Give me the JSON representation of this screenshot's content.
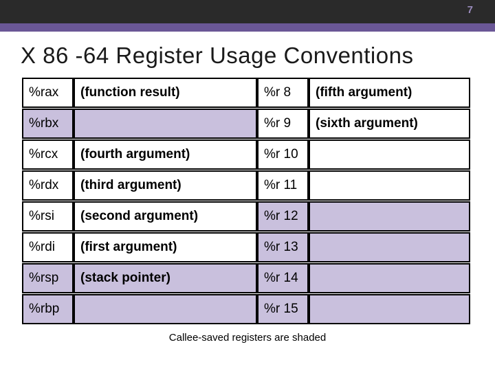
{
  "page_number": "7",
  "title": "X 86 -64 Register Usage Conventions",
  "caption": "Callee-saved registers are shaded",
  "colors": {
    "header_bg": "#2a2a2a",
    "stripe_bg": "#6a5796",
    "shaded_bg": "#c9c0dd",
    "page_num_color": "#9a8bbd"
  },
  "left_registers": [
    {
      "name": "%rax",
      "desc": "(function result)",
      "shaded": false
    },
    {
      "name": "%rbx",
      "desc": "",
      "shaded": true
    },
    {
      "name": "%rcx",
      "desc": "(fourth argument)",
      "shaded": false
    },
    {
      "name": "%rdx",
      "desc": "(third argument)",
      "shaded": false
    },
    {
      "name": "%rsi",
      "desc": "(second argument)",
      "shaded": false
    },
    {
      "name": "%rdi",
      "desc": "(first argument)",
      "shaded": false
    },
    {
      "name": "%rsp",
      "desc": "(stack pointer)",
      "shaded": true
    },
    {
      "name": "%rbp",
      "desc": "",
      "shaded": true
    }
  ],
  "right_registers": [
    {
      "name": "%r 8",
      "desc": "(fifth argument)",
      "shaded": false
    },
    {
      "name": "%r 9",
      "desc": "(sixth argument)",
      "shaded": false
    },
    {
      "name": "%r 10",
      "desc": "",
      "shaded": false
    },
    {
      "name": "%r 11",
      "desc": "",
      "shaded": false
    },
    {
      "name": "%r 12",
      "desc": "",
      "shaded": true
    },
    {
      "name": "%r 13",
      "desc": "",
      "shaded": true
    },
    {
      "name": "%r 14",
      "desc": "",
      "shaded": true
    },
    {
      "name": "%r 15",
      "desc": "",
      "shaded": true
    }
  ]
}
